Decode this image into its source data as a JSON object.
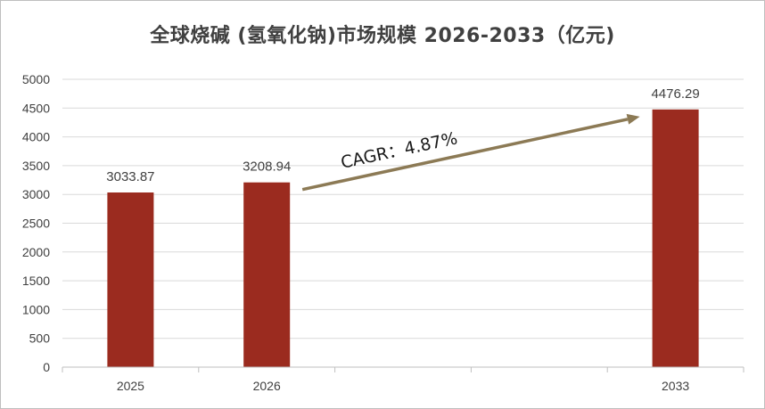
{
  "chart_data": {
    "type": "bar",
    "title": "全球烧碱 (氢氧化钠)市场规模 2026-2033（亿元)",
    "categories": [
      "2025",
      "2026",
      "",
      "",
      "2033"
    ],
    "values": [
      3033.87,
      3208.94,
      null,
      null,
      4476.29
    ],
    "data_labels": [
      "3033.87",
      "3208.94",
      "",
      "",
      "4476.29"
    ],
    "xlabel": "",
    "ylabel": "",
    "ylim": [
      0,
      5000
    ],
    "y_ticks": [
      "0",
      "500",
      "1000",
      "1500",
      "2000",
      "2500",
      "3000",
      "3500",
      "4000",
      "4500",
      "5000"
    ],
    "grid": true,
    "legend": "none",
    "bar_color": "#9b2b1f",
    "annotation": {
      "text": "CAGR：4.87%",
      "arrow_color": "#8c7a55"
    }
  }
}
